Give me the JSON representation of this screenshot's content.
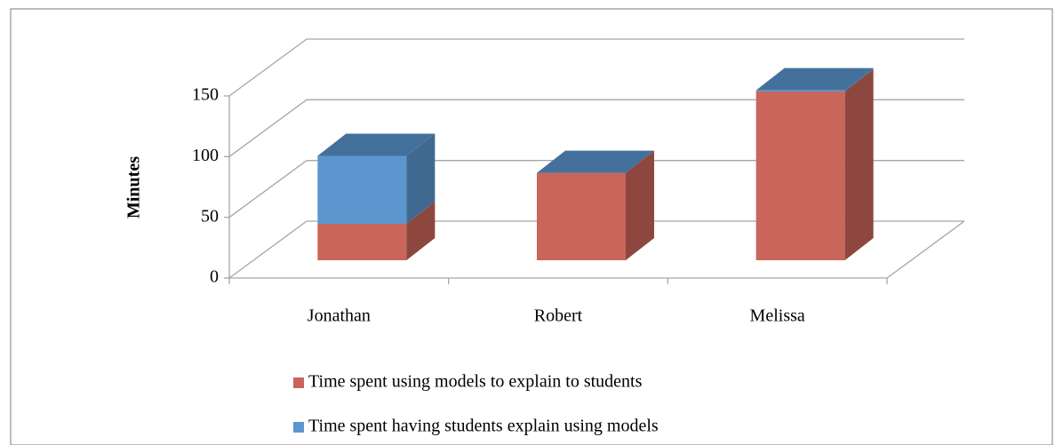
{
  "chart_data": {
    "type": "bar3d_stacked",
    "y_label": "Minutes",
    "categories": [
      "Jonathan",
      "Robert",
      "Melissa"
    ],
    "series": [
      {
        "name": "Time spent using models to explain to students",
        "color": "#c9655a",
        "values": [
          30,
          72,
          139
        ]
      },
      {
        "name": "Time spent having students explain using models",
        "color": "#5b96cf",
        "values": [
          56,
          0,
          1
        ]
      }
    ],
    "ylim": [
      0,
      150
    ],
    "yticks": [
      0,
      50,
      100,
      150
    ],
    "grid": true,
    "legend": "bottom"
  }
}
